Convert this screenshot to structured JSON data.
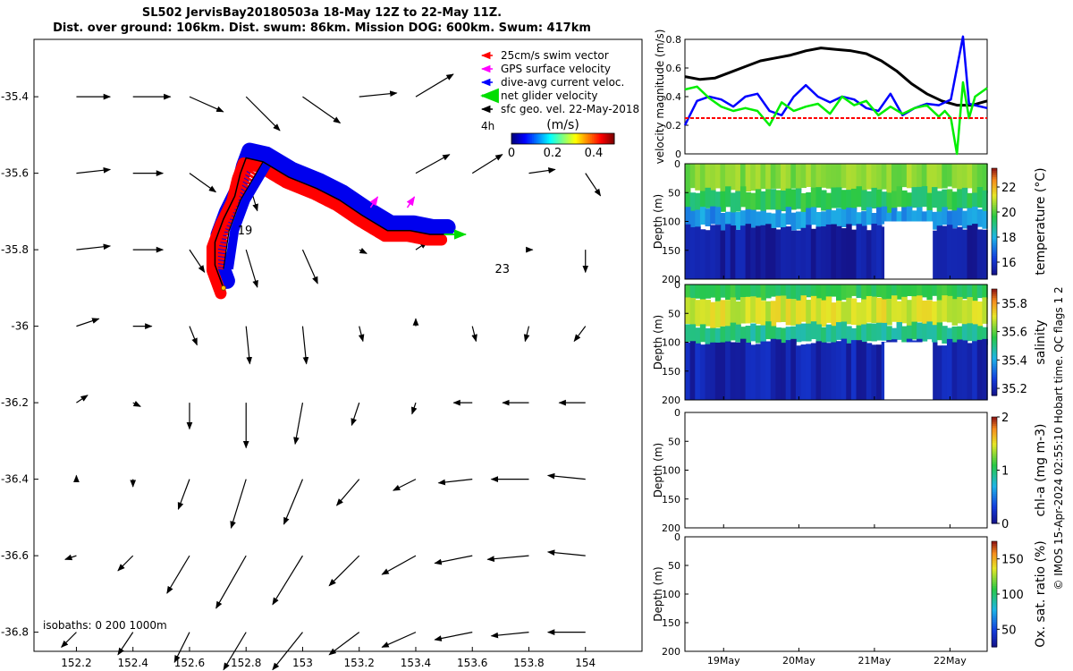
{
  "header": {
    "title_line1": "SL502 JervisBay20180503a 18-May 12Z to 22-May 11Z.",
    "title_line2": "Dist. over ground: 106km. Dist. swum: 86km. Mission DOG: 600km. Swum: 417km"
  },
  "chart_data": [
    {
      "type": "scatter",
      "name": "map",
      "xticks": [
        "152.2",
        "152.4",
        "152.6",
        "152.8",
        "153",
        "153.2",
        "153.4",
        "153.6",
        "153.8",
        "154"
      ],
      "xtick_values": [
        152.2,
        152.4,
        152.6,
        152.8,
        153.0,
        153.2,
        153.4,
        153.6,
        153.8,
        154.0
      ],
      "yticks": [
        "-35.4",
        "-35.6",
        "-35.8",
        "-36",
        "-36.2",
        "-36.4",
        "-36.6",
        "-36.8"
      ],
      "ytick_values": [
        -35.4,
        -35.6,
        -35.8,
        -36.0,
        -36.2,
        -36.4,
        -36.6,
        -36.8
      ],
      "xlim": [
        152.05,
        154.2
      ],
      "ylim": [
        -36.85,
        -35.25
      ],
      "legend": [
        {
          "label": "25cm/s swim vector",
          "color": "#ff0000"
        },
        {
          "label": "GPS surface velocity",
          "color": "#ff00ff"
        },
        {
          "label": "dive-avg current veloc.",
          "color": "#0000ff"
        },
        {
          "label": "net glider velocity",
          "color": "#00ee00"
        },
        {
          "label": "sfc geo. vel. 22-May-2018",
          "color": "#000000"
        }
      ],
      "legend_extra": "4h",
      "colorbar": {
        "label": "(m/s)",
        "ticks": [
          "0",
          "0.2",
          "0.4"
        ],
        "range": [
          0,
          0.5
        ]
      },
      "day_labels": [
        {
          "text": "19",
          "lon": 152.77,
          "lat": -35.76
        },
        {
          "text": "23",
          "lon": 153.68,
          "lat": -35.86
        }
      ],
      "track": [
        [
          152.72,
          -35.9
        ],
        [
          152.69,
          -35.84
        ],
        [
          152.69,
          -35.78
        ],
        [
          152.72,
          -35.72
        ],
        [
          152.76,
          -35.66
        ],
        [
          152.78,
          -35.6
        ],
        [
          152.8,
          -35.56
        ],
        [
          152.86,
          -35.57
        ],
        [
          152.95,
          -35.61
        ],
        [
          153.05,
          -35.64
        ],
        [
          153.13,
          -35.67
        ],
        [
          153.21,
          -35.71
        ],
        [
          153.3,
          -35.75
        ],
        [
          153.38,
          -35.75
        ],
        [
          153.45,
          -35.76
        ],
        [
          153.5,
          -35.76
        ]
      ],
      "track_branch": [
        [
          152.86,
          -35.57
        ],
        [
          152.82,
          -35.62
        ],
        [
          152.78,
          -35.67
        ],
        [
          152.74,
          -35.75
        ],
        [
          152.72,
          -35.85
        ]
      ],
      "annotation": "isobaths: 0   200  1000m",
      "surface_vectors": [
        {
          "lon": 152.2,
          "lat": -35.4,
          "u": 0.09,
          "v": 0.0
        },
        {
          "lon": 152.4,
          "lat": -35.4,
          "u": 0.1,
          "v": 0.0
        },
        {
          "lon": 152.6,
          "lat": -35.4,
          "u": 0.09,
          "v": -0.04
        },
        {
          "lon": 152.8,
          "lat": -35.4,
          "u": 0.09,
          "v": -0.09
        },
        {
          "lon": 153.0,
          "lat": -35.4,
          "u": 0.1,
          "v": -0.07
        },
        {
          "lon": 153.2,
          "lat": -35.4,
          "u": 0.1,
          "v": 0.01
        },
        {
          "lon": 153.4,
          "lat": -35.4,
          "u": 0.1,
          "v": 0.06
        },
        {
          "lon": 152.2,
          "lat": -35.6,
          "u": 0.09,
          "v": 0.01
        },
        {
          "lon": 152.4,
          "lat": -35.6,
          "u": 0.08,
          "v": 0.0
        },
        {
          "lon": 152.6,
          "lat": -35.6,
          "u": 0.07,
          "v": -0.05
        },
        {
          "lon": 152.8,
          "lat": -35.6,
          "u": 0.03,
          "v": -0.1
        },
        {
          "lon": 153.0,
          "lat": -35.6,
          "u": 0.06,
          "v": -0.06
        },
        {
          "lon": 153.4,
          "lat": -35.6,
          "u": 0.09,
          "v": 0.05
        },
        {
          "lon": 153.6,
          "lat": -35.6,
          "u": 0.08,
          "v": 0.05
        },
        {
          "lon": 153.8,
          "lat": -35.6,
          "u": 0.07,
          "v": 0.01
        },
        {
          "lon": 154.0,
          "lat": -35.6,
          "u": 0.04,
          "v": -0.06
        },
        {
          "lon": 152.2,
          "lat": -35.8,
          "u": 0.09,
          "v": 0.01
        },
        {
          "lon": 152.4,
          "lat": -35.8,
          "u": 0.08,
          "v": 0.0
        },
        {
          "lon": 152.6,
          "lat": -35.8,
          "u": 0.04,
          "v": -0.06
        },
        {
          "lon": 152.8,
          "lat": -35.8,
          "u": 0.03,
          "v": -0.1
        },
        {
          "lon": 153.0,
          "lat": -35.8,
          "u": 0.04,
          "v": -0.09
        },
        {
          "lon": 153.2,
          "lat": -35.8,
          "u": 0.02,
          "v": -0.01
        },
        {
          "lon": 153.4,
          "lat": -35.8,
          "u": 0.03,
          "v": 0.02
        },
        {
          "lon": 153.8,
          "lat": -35.8,
          "u": 0.01,
          "v": 0.0
        },
        {
          "lon": 154.0,
          "lat": -35.8,
          "u": 0.0,
          "v": -0.06
        },
        {
          "lon": 152.2,
          "lat": -36.0,
          "u": 0.06,
          "v": 0.02
        },
        {
          "lon": 152.4,
          "lat": -36.0,
          "u": 0.05,
          "v": 0.0
        },
        {
          "lon": 152.6,
          "lat": -36.0,
          "u": 0.02,
          "v": -0.05
        },
        {
          "lon": 152.8,
          "lat": -36.0,
          "u": 0.01,
          "v": -0.1
        },
        {
          "lon": 153.0,
          "lat": -36.0,
          "u": 0.01,
          "v": -0.1
        },
        {
          "lon": 153.2,
          "lat": -36.0,
          "u": 0.01,
          "v": -0.04
        },
        {
          "lon": 153.4,
          "lat": -36.0,
          "u": 0.0,
          "v": 0.02
        },
        {
          "lon": 153.6,
          "lat": -36.0,
          "u": 0.01,
          "v": -0.04
        },
        {
          "lon": 153.8,
          "lat": -36.0,
          "u": -0.01,
          "v": -0.04
        },
        {
          "lon": 154.0,
          "lat": -36.0,
          "u": -0.03,
          "v": -0.04
        },
        {
          "lon": 152.2,
          "lat": -36.2,
          "u": 0.03,
          "v": 0.02
        },
        {
          "lon": 152.4,
          "lat": -36.2,
          "u": 0.02,
          "v": -0.01
        },
        {
          "lon": 152.6,
          "lat": -36.2,
          "u": 0.0,
          "v": -0.07
        },
        {
          "lon": 152.8,
          "lat": -36.2,
          "u": 0.0,
          "v": -0.12
        },
        {
          "lon": 153.0,
          "lat": -36.2,
          "u": -0.02,
          "v": -0.11
        },
        {
          "lon": 153.2,
          "lat": -36.2,
          "u": -0.02,
          "v": -0.06
        },
        {
          "lon": 153.4,
          "lat": -36.2,
          "u": -0.01,
          "v": -0.03
        },
        {
          "lon": 153.6,
          "lat": -36.2,
          "u": -0.05,
          "v": 0.0
        },
        {
          "lon": 153.8,
          "lat": -36.2,
          "u": -0.07,
          "v": 0.0
        },
        {
          "lon": 154.0,
          "lat": -36.2,
          "u": -0.07,
          "v": 0.0
        },
        {
          "lon": 152.2,
          "lat": -36.4,
          "u": 0.0,
          "v": 0.01
        },
        {
          "lon": 152.4,
          "lat": -36.4,
          "u": 0.0,
          "v": -0.02
        },
        {
          "lon": 152.6,
          "lat": -36.4,
          "u": -0.03,
          "v": -0.08
        },
        {
          "lon": 152.8,
          "lat": -36.4,
          "u": -0.04,
          "v": -0.13
        },
        {
          "lon": 153.0,
          "lat": -36.4,
          "u": -0.05,
          "v": -0.12
        },
        {
          "lon": 153.2,
          "lat": -36.4,
          "u": -0.06,
          "v": -0.07
        },
        {
          "lon": 153.4,
          "lat": -36.4,
          "u": -0.06,
          "v": -0.03
        },
        {
          "lon": 153.6,
          "lat": -36.4,
          "u": -0.09,
          "v": -0.01
        },
        {
          "lon": 153.8,
          "lat": -36.4,
          "u": -0.1,
          "v": 0.0
        },
        {
          "lon": 154.0,
          "lat": -36.4,
          "u": -0.1,
          "v": 0.01
        },
        {
          "lon": 152.2,
          "lat": -36.6,
          "u": -0.03,
          "v": -0.01
        },
        {
          "lon": 152.4,
          "lat": -36.6,
          "u": -0.04,
          "v": -0.04
        },
        {
          "lon": 152.6,
          "lat": -36.6,
          "u": -0.06,
          "v": -0.1
        },
        {
          "lon": 152.8,
          "lat": -36.6,
          "u": -0.08,
          "v": -0.14
        },
        {
          "lon": 153.0,
          "lat": -36.6,
          "u": -0.08,
          "v": -0.13
        },
        {
          "lon": 153.2,
          "lat": -36.6,
          "u": -0.08,
          "v": -0.08
        },
        {
          "lon": 153.4,
          "lat": -36.6,
          "u": -0.09,
          "v": -0.05
        },
        {
          "lon": 153.6,
          "lat": -36.6,
          "u": -0.1,
          "v": -0.02
        },
        {
          "lon": 153.8,
          "lat": -36.6,
          "u": -0.11,
          "v": -0.01
        },
        {
          "lon": 154.0,
          "lat": -36.6,
          "u": -0.1,
          "v": 0.01
        },
        {
          "lon": 152.2,
          "lat": -36.8,
          "u": -0.04,
          "v": -0.04
        },
        {
          "lon": 152.4,
          "lat": -36.8,
          "u": -0.04,
          "v": -0.06
        },
        {
          "lon": 152.6,
          "lat": -36.8,
          "u": -0.04,
          "v": -0.08
        },
        {
          "lon": 152.8,
          "lat": -36.8,
          "u": -0.06,
          "v": -0.1
        },
        {
          "lon": 153.0,
          "lat": -36.8,
          "u": -0.08,
          "v": -0.1
        },
        {
          "lon": 153.2,
          "lat": -36.8,
          "u": -0.08,
          "v": -0.06
        },
        {
          "lon": 153.4,
          "lat": -36.8,
          "u": -0.09,
          "v": -0.04
        },
        {
          "lon": 153.6,
          "lat": -36.8,
          "u": -0.1,
          "v": -0.02
        },
        {
          "lon": 153.8,
          "lat": -36.8,
          "u": -0.1,
          "v": -0.01
        },
        {
          "lon": 154.0,
          "lat": -36.8,
          "u": -0.1,
          "v": 0.0
        }
      ]
    },
    {
      "type": "line",
      "name": "velocity",
      "ylabel": "velocity magnitude (m/s)",
      "ylim": [
        0,
        0.8
      ],
      "yticks": [
        "0",
        "0.2",
        "0.4",
        "0.6",
        "0.8"
      ],
      "ytick_values": [
        0,
        0.2,
        0.4,
        0.6,
        0.8
      ],
      "xlim": [
        0,
        1
      ],
      "series": [
        {
          "color": "#000000",
          "x": [
            0.0,
            0.05,
            0.1,
            0.15,
            0.2,
            0.25,
            0.3,
            0.35,
            0.4,
            0.45,
            0.5,
            0.55,
            0.6,
            0.65,
            0.7,
            0.75,
            0.8,
            0.85,
            0.9,
            0.95,
            1.0
          ],
          "values": [
            0.54,
            0.52,
            0.53,
            0.57,
            0.61,
            0.65,
            0.67,
            0.69,
            0.72,
            0.74,
            0.73,
            0.72,
            0.7,
            0.65,
            0.58,
            0.49,
            0.42,
            0.37,
            0.34,
            0.34,
            0.37
          ]
        },
        {
          "color": "#0000ff",
          "x": [
            0.0,
            0.04,
            0.08,
            0.12,
            0.16,
            0.2,
            0.24,
            0.28,
            0.32,
            0.36,
            0.4,
            0.44,
            0.48,
            0.52,
            0.56,
            0.6,
            0.64,
            0.68,
            0.72,
            0.76,
            0.8,
            0.84,
            0.88,
            0.9,
            0.92,
            0.94,
            0.96,
            1.0
          ],
          "values": [
            0.2,
            0.37,
            0.4,
            0.38,
            0.33,
            0.4,
            0.42,
            0.3,
            0.27,
            0.4,
            0.48,
            0.4,
            0.36,
            0.4,
            0.38,
            0.32,
            0.3,
            0.42,
            0.27,
            0.32,
            0.35,
            0.34,
            0.38,
            0.6,
            0.82,
            0.35,
            0.34,
            0.32
          ]
        },
        {
          "color": "#00ee00",
          "x": [
            0.0,
            0.04,
            0.08,
            0.12,
            0.16,
            0.2,
            0.24,
            0.28,
            0.32,
            0.36,
            0.4,
            0.44,
            0.48,
            0.52,
            0.56,
            0.6,
            0.64,
            0.68,
            0.72,
            0.76,
            0.8,
            0.84,
            0.86,
            0.88,
            0.9,
            0.92,
            0.94,
            0.96,
            1.0
          ],
          "values": [
            0.45,
            0.47,
            0.39,
            0.33,
            0.3,
            0.32,
            0.3,
            0.2,
            0.36,
            0.3,
            0.33,
            0.35,
            0.28,
            0.4,
            0.34,
            0.37,
            0.27,
            0.33,
            0.28,
            0.32,
            0.34,
            0.26,
            0.3,
            0.25,
            0.0,
            0.5,
            0.25,
            0.4,
            0.46
          ]
        },
        {
          "color": "#ff0000",
          "dashed": true,
          "x": [
            0.0,
            1.0
          ],
          "values": [
            0.25,
            0.25
          ]
        }
      ]
    },
    {
      "type": "heatmap",
      "name": "temperature",
      "ylabel": "Depth (m)",
      "cbar_label": "temperature (°C)",
      "cbar_ticks": [
        "16",
        "18",
        "20",
        "22"
      ],
      "cbar_tick_values": [
        16,
        18,
        20,
        22
      ],
      "cbar_range": [
        15,
        23.5
      ],
      "yticks": [
        "0",
        "50",
        "100",
        "150",
        "200"
      ],
      "ytick_values": [
        0,
        50,
        100,
        150,
        200
      ],
      "ylim": [
        0,
        200
      ],
      "layers": [
        {
          "depth_top": 0,
          "depth_bottom": 45,
          "value": 20.5
        },
        {
          "depth_top": 45,
          "depth_bottom": 80,
          "value": 19.5
        },
        {
          "depth_top": 80,
          "depth_bottom": 110,
          "value": 17.5
        },
        {
          "depth_top": 110,
          "depth_bottom": 200,
          "value": 15.3
        }
      ],
      "gap": {
        "x_start": 0.66,
        "x_end": 0.82,
        "depth_top": 100,
        "depth_bottom": 200
      }
    },
    {
      "type": "heatmap",
      "name": "salinity",
      "ylabel": "Depth (m)",
      "cbar_label": "salinity",
      "cbar_ticks": [
        "35.2",
        "35.4",
        "35.6",
        "35.8"
      ],
      "cbar_tick_values": [
        35.2,
        35.4,
        35.6,
        35.8
      ],
      "cbar_range": [
        35.15,
        35.9
      ],
      "yticks": [
        "0",
        "50",
        "100",
        "150",
        "200"
      ],
      "ytick_values": [
        0,
        50,
        100,
        150,
        200
      ],
      "ylim": [
        0,
        200
      ],
      "layers": [
        {
          "depth_top": 0,
          "depth_bottom": 25,
          "value": 35.55
        },
        {
          "depth_top": 25,
          "depth_bottom": 70,
          "value": 35.7
        },
        {
          "depth_top": 70,
          "depth_bottom": 100,
          "value": 35.5
        },
        {
          "depth_top": 100,
          "depth_bottom": 200,
          "value": 35.2
        }
      ],
      "gap": {
        "x_start": 0.66,
        "x_end": 0.82,
        "depth_top": 100,
        "depth_bottom": 200
      }
    },
    {
      "type": "heatmap",
      "name": "chl-a",
      "ylabel": "Depth (m)",
      "cbar_label": "chl-a (mg m-3)",
      "cbar_ticks": [
        "0",
        "1",
        "2"
      ],
      "cbar_tick_values": [
        0,
        1,
        2
      ],
      "cbar_range": [
        0,
        2
      ],
      "yticks": [
        "0",
        "50",
        "100",
        "150",
        "200"
      ],
      "ytick_values": [
        0,
        50,
        100,
        150,
        200
      ],
      "ylim": [
        0,
        200
      ],
      "layers": []
    },
    {
      "type": "heatmap",
      "name": "oxygen",
      "ylabel": "Depth (m)",
      "cbar_label": "Ox. sat. ratio (%)",
      "cbar_ticks": [
        "50",
        "100",
        "150"
      ],
      "cbar_tick_values": [
        50,
        100,
        150
      ],
      "cbar_range": [
        25,
        175
      ],
      "yticks": [
        "0",
        "50",
        "100",
        "150",
        "200"
      ],
      "ytick_values": [
        0,
        50,
        100,
        150,
        200
      ],
      "ylim": [
        0,
        200
      ],
      "layers": [],
      "xticks": [
        "19May",
        "20May",
        "21May",
        "22May"
      ]
    }
  ],
  "footer": {
    "credit": "© IMOS 15-Apr-2024 02:55:10 Hobart time. QC flags 1  2"
  }
}
